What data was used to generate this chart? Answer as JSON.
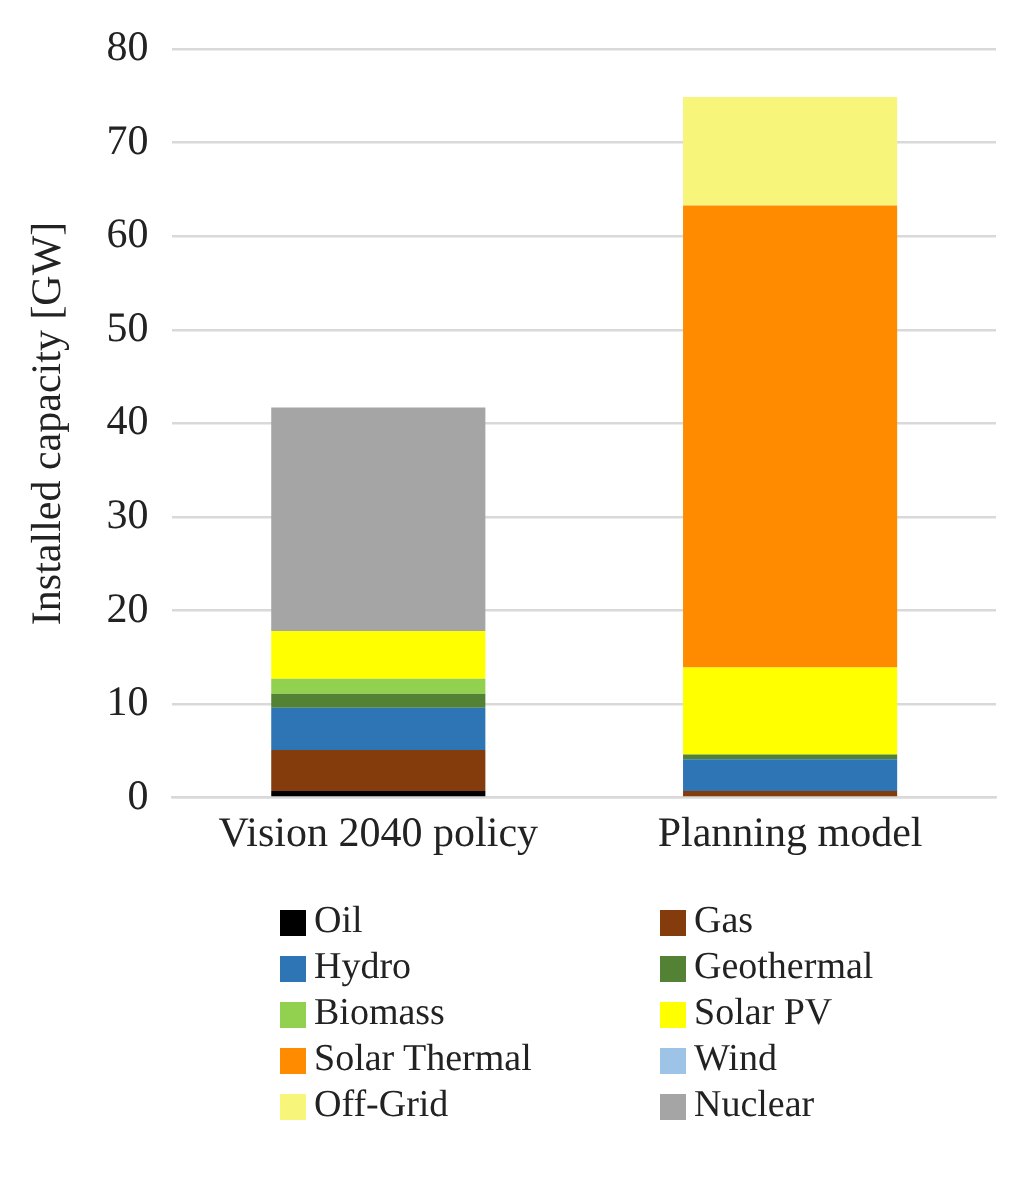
{
  "chart_data": {
    "type": "bar",
    "stacked": true,
    "ylabel": "Installed capacity [GW]",
    "categories": [
      "Vision 2040 policy",
      "Planning model"
    ],
    "series": [
      {
        "name": "Oil",
        "color": "#000000",
        "values": [
          0.7,
          0
        ]
      },
      {
        "name": "Gas",
        "color": "#843c0c",
        "values": [
          4.4,
          0.7
        ]
      },
      {
        "name": "Hydro",
        "color": "#2e75b6",
        "values": [
          4.5,
          3.4
        ]
      },
      {
        "name": "Geothermal",
        "color": "#548235",
        "values": [
          1.5,
          0.5
        ]
      },
      {
        "name": "Biomass",
        "color": "#92d050",
        "values": [
          1.6,
          0
        ]
      },
      {
        "name": "Solar PV",
        "color": "#ffff00",
        "values": [
          5.1,
          9.3
        ]
      },
      {
        "name": "Solar Thermal",
        "color": "#ff8c00",
        "values": [
          0,
          49.4
        ]
      },
      {
        "name": "Wind",
        "color": "#9dc3e6",
        "values": [
          0,
          0
        ]
      },
      {
        "name": "Off-Grid",
        "color": "#f7f57a",
        "values": [
          0,
          11.6
        ]
      },
      {
        "name": "Nuclear",
        "color": "#a5a5a5",
        "values": [
          23.9,
          0
        ]
      }
    ],
    "ylim": [
      0,
      80
    ],
    "yticks": [
      0,
      10,
      20,
      30,
      40,
      50,
      60,
      70,
      80
    ],
    "grid": "y",
    "legend": "bottom"
  }
}
